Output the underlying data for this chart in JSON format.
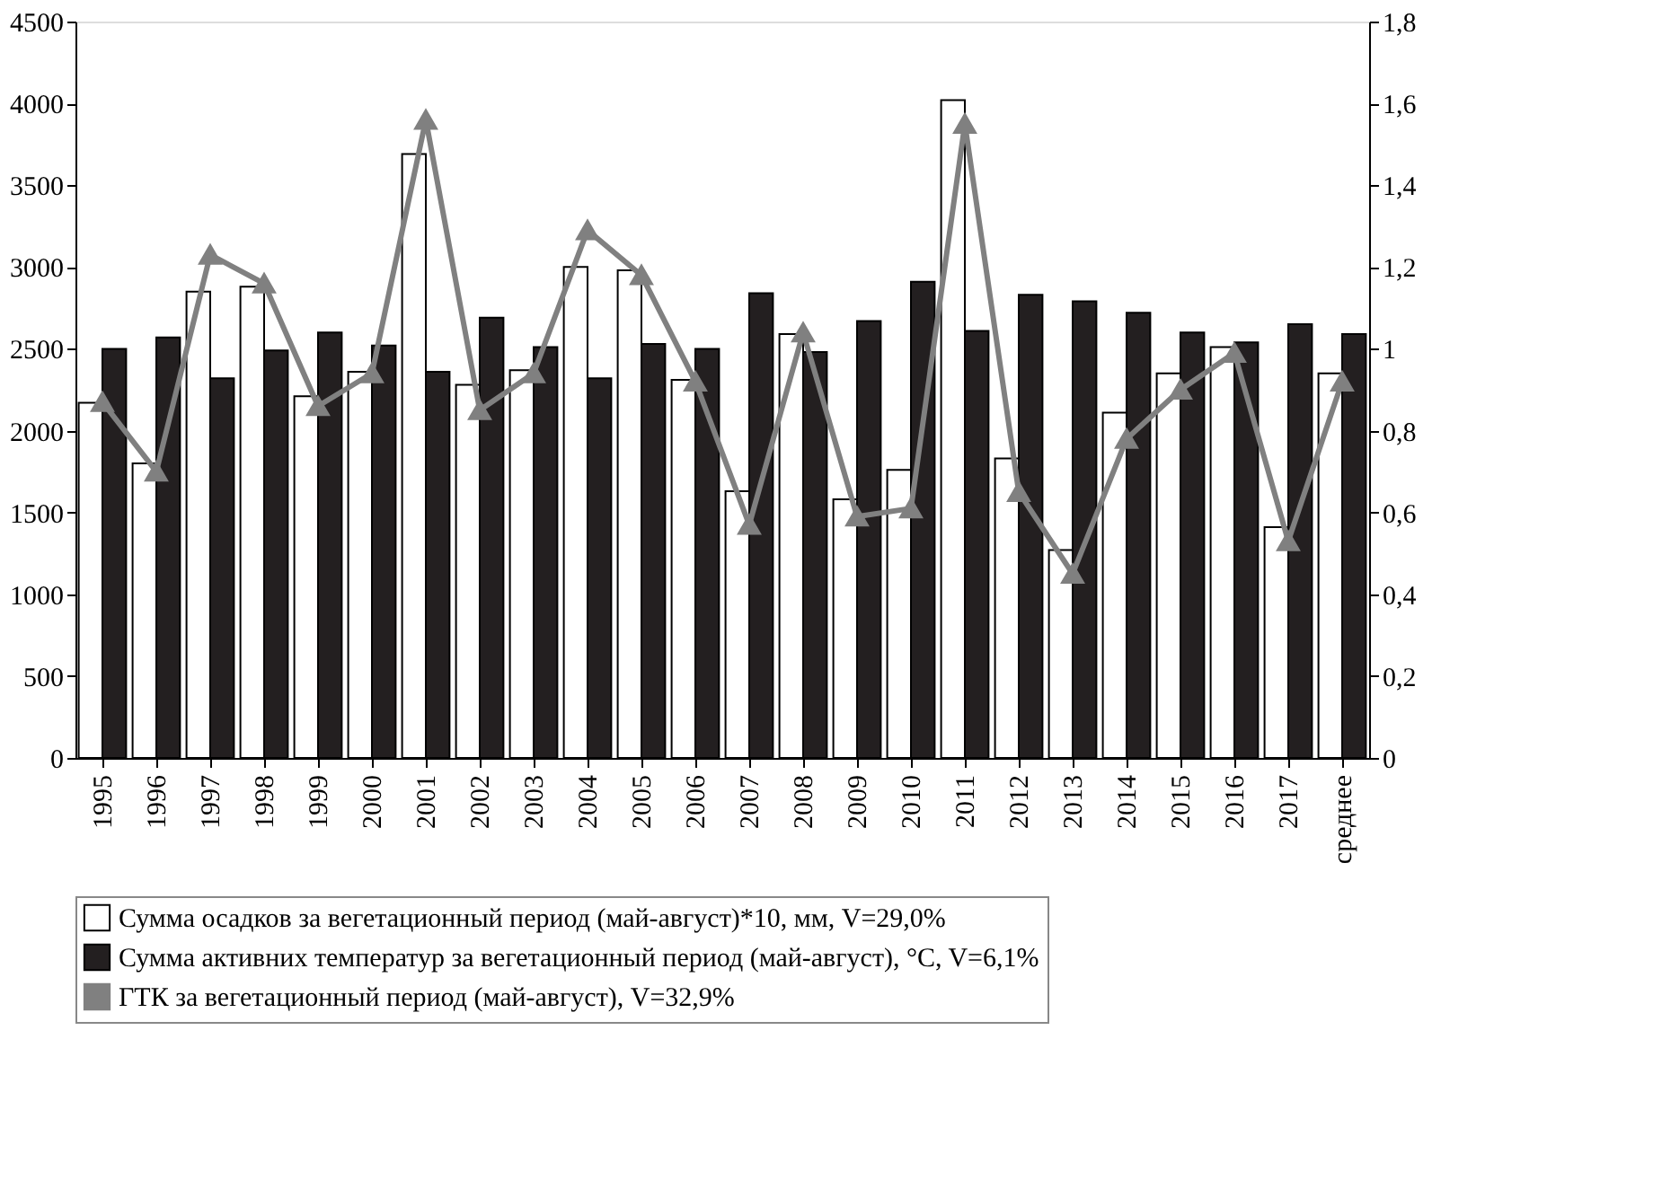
{
  "chart_data": {
    "type": "bar",
    "categories": [
      "1995",
      "1996",
      "1997",
      "1998",
      "1999",
      "2000",
      "2001",
      "2002",
      "2003",
      "2004",
      "2005",
      "2006",
      "2007",
      "2008",
      "2009",
      "2010",
      "2011",
      "2012",
      "2013",
      "2014",
      "2015",
      "2016",
      "2017",
      "среднее"
    ],
    "series": [
      {
        "name": "Сумма осадков за вегетационный период (май-август)*10, мм, V=29,0%",
        "color": "#ffffff",
        "values": [
          2170,
          1800,
          2850,
          2880,
          2210,
          2360,
          3690,
          2280,
          2370,
          3000,
          2980,
          2310,
          1630,
          2590,
          1580,
          1760,
          4020,
          1830,
          1270,
          2110,
          2350,
          2510,
          1410,
          2350
        ]
      },
      {
        "name": "Сумма активних температур за вегетационный период (май-август), °C, V=6,1%",
        "color": "#231f20",
        "values": [
          2500,
          2570,
          2320,
          2490,
          2600,
          2520,
          2360,
          2690,
          2510,
          2320,
          2530,
          2500,
          2840,
          2480,
          2670,
          2910,
          2610,
          2830,
          2790,
          2720,
          2600,
          2540,
          2650,
          2590
        ]
      },
      {
        "name": "ГТК за вегетационный период (май-август), V=32,9%",
        "color": "#808080",
        "type": "line",
        "axis": "y2",
        "marker": "triangle",
        "values": [
          0.87,
          0.7,
          1.23,
          1.16,
          0.86,
          0.94,
          1.56,
          0.85,
          0.94,
          1.29,
          1.18,
          0.92,
          0.57,
          1.04,
          0.59,
          0.61,
          1.55,
          0.65,
          0.45,
          0.78,
          0.9,
          0.99,
          0.53,
          0.92
        ]
      }
    ],
    "ylim": [
      0,
      4500
    ],
    "yticks": [
      0,
      500,
      1000,
      1500,
      2000,
      2500,
      3000,
      3500,
      4000,
      4500
    ],
    "y2lim": [
      0,
      1.8
    ],
    "y2ticks": [
      0,
      {
        "value": 0.2,
        "label": "0,2"
      },
      {
        "value": 0.4,
        "label": "0,4"
      },
      {
        "value": 0.6,
        "label": "0,6"
      },
      {
        "value": 0.8,
        "label": "0,8"
      },
      1,
      {
        "value": 1.2,
        "label": "1,2"
      },
      {
        "value": 1.4,
        "label": "1,4"
      },
      {
        "value": 1.6,
        "label": "1,6"
      },
      {
        "value": 1.8,
        "label": "1,8"
      }
    ],
    "grid": false,
    "legend": "bottom"
  }
}
